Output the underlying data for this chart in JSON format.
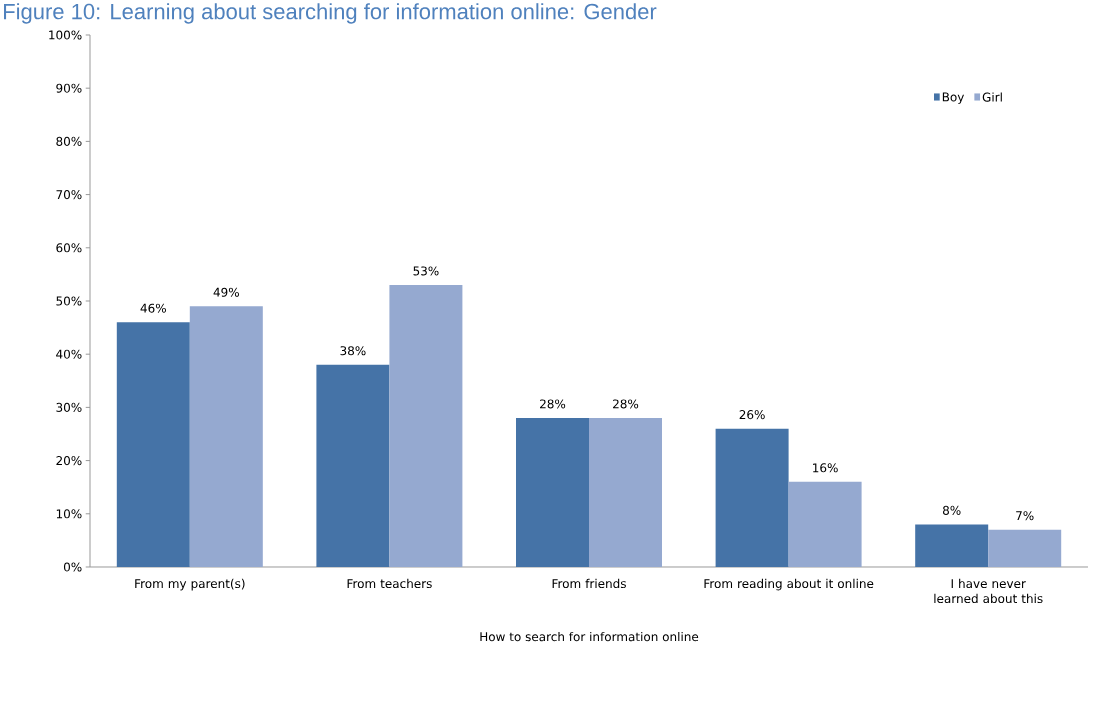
{
  "chart_data": {
    "type": "bar",
    "title": "Figure 10: Learning about searching for information online: Gender",
    "xlabel": "How to search for information online",
    "categories": [
      "From my parent(s)",
      "From teachers",
      "From friends",
      "From reading about it online",
      "I have never learned about this"
    ],
    "series": [
      {
        "name": "Boy",
        "color": "#4573a7",
        "values": [
          46,
          38,
          28,
          26,
          8
        ],
        "value_labels": [
          "46%",
          "38%",
          "28%",
          "26%",
          "8%"
        ]
      },
      {
        "name": "Girl",
        "color": "#95a9d0",
        "values": [
          49,
          53,
          28,
          16,
          7
        ],
        "value_labels": [
          "49%",
          "53%",
          "28%",
          "16%",
          "7%"
        ]
      }
    ],
    "ylim": [
      0,
      100
    ],
    "yticks": [
      {
        "value": 0,
        "label": "0%"
      },
      {
        "value": 10,
        "label": "10%"
      },
      {
        "value": 20,
        "label": "20%"
      },
      {
        "value": 30,
        "label": "30%"
      },
      {
        "value": 40,
        "label": "40%"
      },
      {
        "value": 50,
        "label": "50%"
      },
      {
        "value": 60,
        "label": "60%"
      },
      {
        "value": 70,
        "label": "70%"
      },
      {
        "value": 80,
        "label": "80%"
      },
      {
        "value": 90,
        "label": "90%"
      },
      {
        "value": 100,
        "label": "100%"
      }
    ],
    "grid": false,
    "legend": "top right"
  }
}
